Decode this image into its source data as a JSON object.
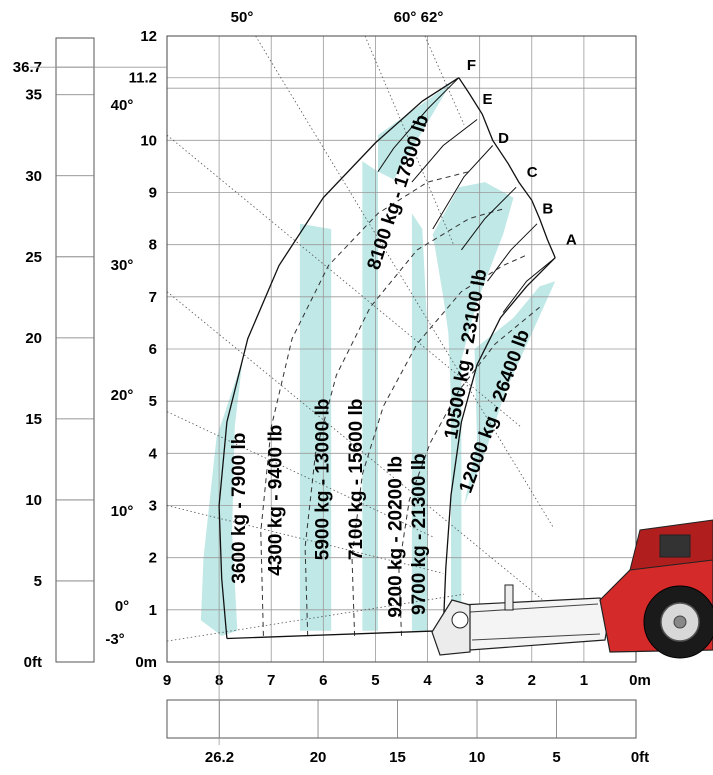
{
  "chart_data": {
    "type": "load-chart",
    "x_axis": {
      "ticks": [
        "9",
        "8",
        "7",
        "6",
        "5",
        "4",
        "3",
        "2",
        "1",
        "0m"
      ],
      "range": [
        0,
        9
      ],
      "direction": "reversed"
    },
    "y_axis": {
      "ticks": [
        "0m",
        "1",
        "2",
        "3",
        "4",
        "5",
        "6",
        "7",
        "8",
        "9",
        "10",
        "11.2",
        "12"
      ],
      "range": [
        0,
        12
      ]
    },
    "ft_height_scale": {
      "ticks": [
        "0ft",
        "5",
        "10",
        "15",
        "20",
        "25",
        "30",
        "35",
        "36.7"
      ]
    },
    "ft_reach_scale": {
      "ticks": [
        "0ft",
        "5",
        "10",
        "15",
        "20",
        "26.2"
      ]
    },
    "angles_top": [
      "50°",
      "60°",
      "62°"
    ],
    "angles_left": [
      "40°",
      "30°",
      "20°",
      "10°",
      "0°",
      "-3°"
    ],
    "points": [
      "A",
      "B",
      "C",
      "D",
      "E",
      "F"
    ],
    "zones": [
      {
        "label": "3600 kg - 7900 lb",
        "shaded": true
      },
      {
        "label": "4300 kg - 9400 lb",
        "shaded": false
      },
      {
        "label": "5900 kg - 13000 lb",
        "shaded": true
      },
      {
        "label": "7100 kg - 15600 lb",
        "shaded": false
      },
      {
        "label": "8100 kg - 17800 lb",
        "shaded": true
      },
      {
        "label": "9200 kg - 20200 lb",
        "shaded": false
      },
      {
        "label": "9700 kg - 21300 lb",
        "shaded": true
      },
      {
        "label": "10500 kg - 23100 lb",
        "shaded": false
      },
      {
        "label": "12000 kg - 26400 lb",
        "shaded": true
      }
    ],
    "colors": {
      "zone_fill": "#bfe8e6",
      "machine": "#d42a2a",
      "tire": "#1a1a1a",
      "rim": "#d8d8d8"
    }
  }
}
